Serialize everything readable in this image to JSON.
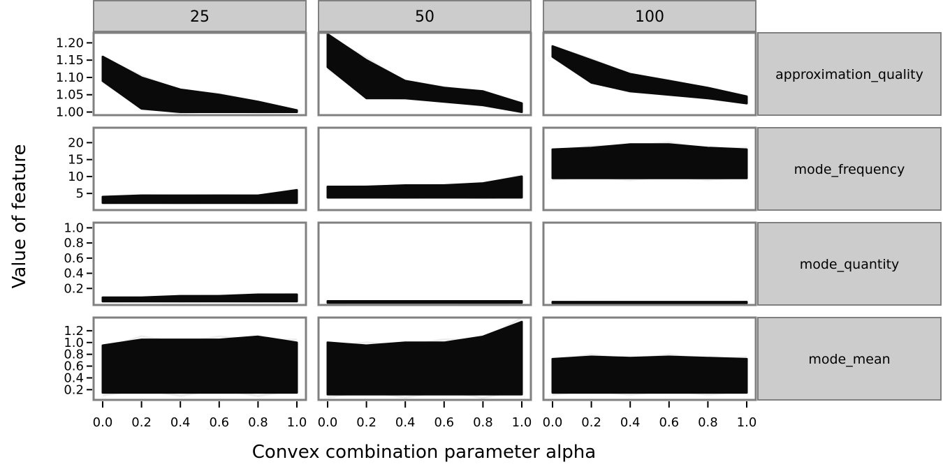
{
  "chart_data": {
    "type": "line",
    "layout": "facet-grid",
    "xlabel": "Convex combination parameter alpha",
    "ylabel": "Value of feature",
    "x": [
      0.0,
      0.2,
      0.4,
      0.6,
      0.8,
      1.0
    ],
    "x_tick_labels": [
      "0.0",
      "0.2",
      "0.4",
      "0.6",
      "0.8",
      "1.0"
    ],
    "columns": [
      "25",
      "50",
      "100"
    ],
    "rows": [
      {
        "name": "approximation_quality",
        "ylim": [
          0.995,
          1.225
        ],
        "yticks": [
          1.0,
          1.05,
          1.1,
          1.15,
          1.2
        ],
        "y_tick_labels": [
          "1.00",
          "1.05",
          "1.10",
          "1.15",
          "1.20"
        ],
        "panels": [
          {
            "lower": [
              1.09,
              1.01,
              1.0,
              1.0,
              1.0,
              1.0
            ],
            "upper": [
              1.16,
              1.1,
              1.065,
              1.05,
              1.03,
              1.005
            ]
          },
          {
            "lower": [
              1.13,
              1.04,
              1.04,
              1.03,
              1.02,
              1.0
            ],
            "upper": [
              1.225,
              1.15,
              1.09,
              1.07,
              1.06,
              1.025
            ]
          },
          {
            "lower": [
              1.16,
              1.085,
              1.06,
              1.05,
              1.04,
              1.025
            ],
            "upper": [
              1.19,
              1.15,
              1.11,
              1.09,
              1.07,
              1.045
            ]
          }
        ]
      },
      {
        "name": "mode_frequency",
        "ylim": [
          0.5,
          24
        ],
        "yticks": [
          5,
          10,
          15,
          20
        ],
        "y_tick_labels": [
          "5",
          "10",
          "15",
          "20"
        ],
        "panels": [
          {
            "lower": [
              2.2,
              2.2,
              2.2,
              2.2,
              2.2,
              2.2
            ],
            "upper": [
              4.0,
              4.4,
              4.4,
              4.4,
              4.4,
              6.0
            ]
          },
          {
            "lower": [
              3.8,
              3.8,
              3.8,
              3.8,
              3.8,
              3.8
            ],
            "upper": [
              7.0,
              7.0,
              7.4,
              7.4,
              8.0,
              10.0
            ]
          },
          {
            "lower": [
              9.5,
              9.5,
              9.5,
              9.5,
              9.5,
              9.5
            ],
            "upper": [
              18.0,
              18.5,
              19.5,
              19.5,
              18.5,
              18.0
            ]
          }
        ]
      },
      {
        "name": "mode_quantity",
        "ylim": [
          0.0,
          1.05
        ],
        "yticks": [
          0.2,
          0.4,
          0.6,
          0.8,
          1.0
        ],
        "y_tick_labels": [
          "0.2",
          "0.4",
          "0.6",
          "0.8",
          "1.0"
        ],
        "panels": [
          {
            "lower": [
              0.03,
              0.03,
              0.03,
              0.03,
              0.03,
              0.03
            ],
            "upper": [
              0.08,
              0.08,
              0.1,
              0.1,
              0.12,
              0.12
            ]
          },
          {
            "lower": [
              0.012,
              0.012,
              0.012,
              0.012,
              0.012,
              0.012
            ],
            "upper": [
              0.032,
              0.032,
              0.032,
              0.032,
              0.032,
              0.032
            ]
          },
          {
            "lower": [
              0.008,
              0.008,
              0.008,
              0.008,
              0.008,
              0.008
            ],
            "upper": [
              0.022,
              0.022,
              0.022,
              0.022,
              0.022,
              0.022
            ]
          }
        ]
      },
      {
        "name": "mode_mean",
        "ylim": [
          0.05,
          1.4
        ],
        "yticks": [
          0.2,
          0.4,
          0.6,
          0.8,
          1.0,
          1.2
        ],
        "y_tick_labels": [
          "0.2",
          "0.4",
          "0.6",
          "0.8",
          "1.0",
          "1.2"
        ],
        "panels": [
          {
            "lower": [
              0.15,
              0.15,
              0.15,
              0.15,
              0.15,
              0.15
            ],
            "upper": [
              0.95,
              1.05,
              1.05,
              1.05,
              1.1,
              1.0
            ]
          },
          {
            "lower": [
              0.12,
              0.12,
              0.12,
              0.12,
              0.12,
              0.12
            ],
            "upper": [
              1.0,
              0.95,
              1.0,
              1.0,
              1.1,
              1.35
            ]
          },
          {
            "lower": [
              0.15,
              0.15,
              0.15,
              0.15,
              0.15,
              0.15
            ],
            "upper": [
              0.72,
              0.76,
              0.74,
              0.76,
              0.74,
              0.72
            ]
          }
        ]
      }
    ],
    "colors": {
      "lines": "#000000",
      "strip_fill": "#cccccc",
      "frame": "#808080"
    }
  }
}
